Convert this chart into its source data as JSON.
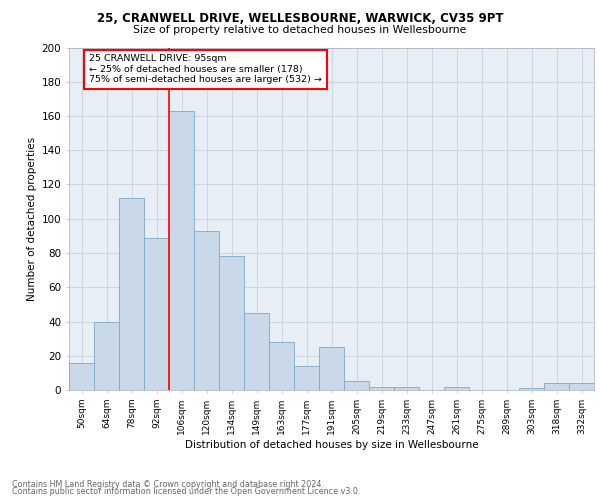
{
  "title1": "25, CRANWELL DRIVE, WELLESBOURNE, WARWICK, CV35 9PT",
  "title2": "Size of property relative to detached houses in Wellesbourne",
  "xlabel": "Distribution of detached houses by size in Wellesbourne",
  "ylabel": "Number of detached properties",
  "footnote1": "Contains HM Land Registry data © Crown copyright and database right 2024.",
  "footnote2": "Contains public sector information licensed under the Open Government Licence v3.0.",
  "bar_labels": [
    "50sqm",
    "64sqm",
    "78sqm",
    "92sqm",
    "106sqm",
    "120sqm",
    "134sqm",
    "149sqm",
    "163sqm",
    "177sqm",
    "191sqm",
    "205sqm",
    "219sqm",
    "233sqm",
    "247sqm",
    "261sqm",
    "275sqm",
    "289sqm",
    "303sqm",
    "318sqm",
    "332sqm"
  ],
  "bar_values": [
    16,
    40,
    112,
    89,
    163,
    93,
    78,
    45,
    28,
    14,
    25,
    5,
    2,
    2,
    0,
    2,
    0,
    0,
    1,
    4,
    4
  ],
  "bar_color": "#c9d9e9",
  "bar_edge_color": "#7aaac8",
  "grid_color": "#c8d0dc",
  "background_color": "#e8eef6",
  "annotation_line1": "25 CRANWELL DRIVE: 95sqm",
  "annotation_line2": "← 25% of detached houses are smaller (178)",
  "annotation_line3": "75% of semi-detached houses are larger (532) →",
  "annotation_box_color": "white",
  "annotation_box_edge_color": "red",
  "vline_x": 3.5,
  "vline_color": "red",
  "ylim": [
    0,
    200
  ],
  "yticks": [
    0,
    20,
    40,
    60,
    80,
    100,
    120,
    140,
    160,
    180,
    200
  ]
}
